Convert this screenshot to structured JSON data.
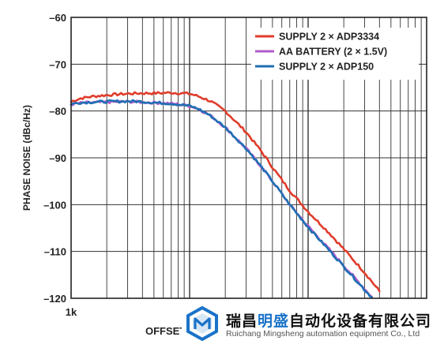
{
  "chart_data": {
    "type": "line",
    "xlabel": "OFFSET",
    "ylabel": "PHASE NOISE (dBc/Hz)",
    "x_scale": "log",
    "xlim": [
      1000,
      1000000
    ],
    "ylim": [
      -120,
      -60
    ],
    "grid": true,
    "legend_position": "top-right",
    "y_ticks": [
      {
        "value": -60,
        "label": "–60"
      },
      {
        "value": -70,
        "label": "–70"
      },
      {
        "value": -80,
        "label": "–80"
      },
      {
        "value": -90,
        "label": "–90"
      },
      {
        "value": -100,
        "label": "–100"
      },
      {
        "value": -110,
        "label": "–110"
      },
      {
        "value": -120,
        "label": "–120"
      }
    ],
    "x_ticks": [
      {
        "value": 1000,
        "label": "1k"
      }
    ],
    "series": [
      {
        "name": "SUPPLY 2 × ADP3334",
        "color": "#e03c2a",
        "x": [
          1000,
          1200,
          1500,
          2000,
          3000,
          4000,
          5000,
          7000,
          10000,
          12000,
          15000,
          20000,
          30000,
          40000,
          50000,
          70000,
          100000,
          150000,
          200000,
          300000,
          400000
        ],
        "y": [
          -78.0,
          -77.3,
          -76.9,
          -76.6,
          -76.3,
          -76.2,
          -76.2,
          -76.1,
          -76.3,
          -76.9,
          -77.9,
          -80.0,
          -84.5,
          -88.5,
          -92.0,
          -97.0,
          -101.5,
          -106.0,
          -109.5,
          -114.5,
          -118.5
        ]
      },
      {
        "name": "AA BATTERY (2 × 1.5V)",
        "color": "#b05cc8",
        "x": [
          1000,
          1200,
          1500,
          2000,
          3000,
          4000,
          5000,
          7000,
          10000,
          12000,
          15000,
          20000,
          30000,
          40000,
          50000,
          70000,
          100000,
          150000,
          200000,
          300000,
          400000
        ],
        "y": [
          -78.6,
          -78.3,
          -78.2,
          -78.1,
          -78.0,
          -78.1,
          -78.2,
          -78.4,
          -78.9,
          -79.6,
          -81.0,
          -83.5,
          -88.0,
          -91.8,
          -95.0,
          -100.0,
          -104.6,
          -109.5,
          -113.0,
          -118.0,
          -121.5
        ]
      },
      {
        "name": "SUPPLY 2 × ADP150",
        "color": "#1f6fb4",
        "x": [
          1000,
          1200,
          1500,
          2000,
          3000,
          4000,
          5000,
          7000,
          10000,
          12000,
          15000,
          20000,
          30000,
          40000,
          50000,
          70000,
          100000,
          150000,
          200000,
          300000,
          400000
        ],
        "y": [
          -78.5,
          -78.2,
          -78.1,
          -78.0,
          -77.9,
          -78.0,
          -78.2,
          -78.4,
          -78.9,
          -79.6,
          -81.0,
          -83.5,
          -88.0,
          -91.8,
          -95.0,
          -100.0,
          -104.8,
          -109.7,
          -113.2,
          -118.2,
          -121.5
        ]
      }
    ]
  },
  "watermark": {
    "company_cn_prefix": "瑞昌",
    "company_cn_highlight": "明盛",
    "company_cn_suffix": "自动化设备有限公司",
    "company_en": "Ruichang Mingsheng automation equipment Co., Ltd",
    "logo_color": "#1a73c9",
    "logo_icon": "hexagon-m-logo-icon"
  }
}
